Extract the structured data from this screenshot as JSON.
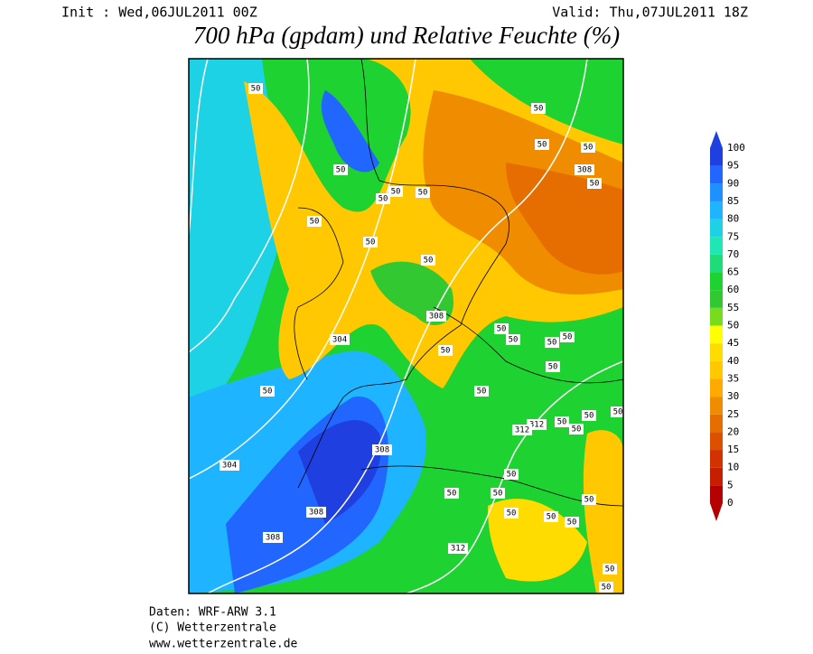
{
  "header": {
    "init": "Init : Wed,06JUL2011 00Z",
    "valid": "Valid: Thu,07JUL2011 18Z",
    "title": "700 hPa (gpdam) und Relative Feuchte (%)"
  },
  "colorbar": {
    "ticks": [
      0,
      5,
      10,
      15,
      20,
      25,
      30,
      35,
      40,
      45,
      50,
      55,
      60,
      65,
      70,
      75,
      80,
      85,
      90,
      95,
      100
    ],
    "colors": [
      "#b40000",
      "#c81e00",
      "#d23200",
      "#dc5000",
      "#e66e00",
      "#f08c00",
      "#ffaa00",
      "#ffc800",
      "#ffdc00",
      "#ffff00",
      "#78dc1e",
      "#32c832",
      "#1ed232",
      "#1edc78",
      "#1ee6b4",
      "#1ed2e6",
      "#1eb4ff",
      "#1e90ff",
      "#2066ff",
      "#1f3fe0"
    ]
  },
  "map": {
    "contour_labels": [
      "50",
      "50",
      "50",
      "50",
      "308",
      "50",
      "50",
      "50",
      "50",
      "50",
      "50",
      "50",
      "50",
      "308",
      "50",
      "50",
      "50",
      "50",
      "304",
      "50",
      "50",
      "50",
      "50",
      "50",
      "312",
      "312",
      "50",
      "50",
      "50",
      "308",
      "304",
      "50",
      "50",
      "50",
      "50",
      "308",
      "50",
      "50",
      "50",
      "308",
      "312",
      "50",
      "50"
    ]
  },
  "footer": {
    "model": "Daten: WRF-ARW 3.1",
    "copyright": "(C) Wetterzentrale",
    "url": "www.wetterzentrale.de"
  }
}
